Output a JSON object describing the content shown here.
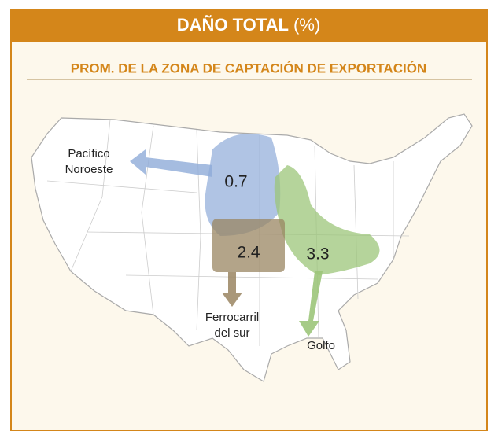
{
  "header": {
    "title": "DAÑO TOTAL",
    "unit": "(%)"
  },
  "subtitle": "PROM. DE LA ZONA DE CAPTACIÓN DE EXPORTACIÓN",
  "zones": [
    {
      "name": [
        "Pacífico",
        "Noroeste"
      ],
      "value": 0.7
    },
    {
      "name": [
        "Ferrocarril",
        "del sur"
      ],
      "value": 2.4
    },
    {
      "name": [
        "Golfo"
      ],
      "value": 3.3
    }
  ]
}
